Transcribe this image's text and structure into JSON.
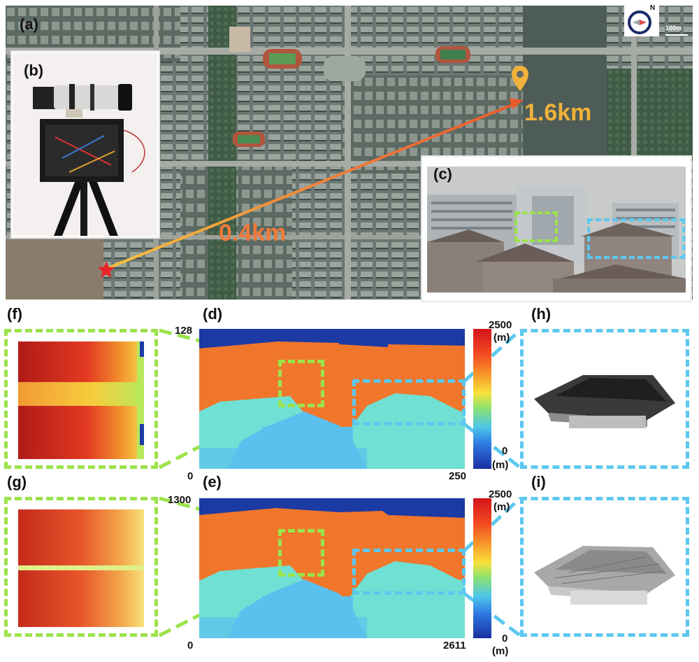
{
  "panels": {
    "a": "(a)",
    "b": "(b)",
    "c": "(c)",
    "d": "(d)",
    "e": "(e)",
    "f": "(f)",
    "g": "(g)",
    "h": "(h)",
    "i": "(i)"
  },
  "map": {
    "compass_letter": "N",
    "scale_bar": "100m",
    "distance_near": "0.4km",
    "distance_far": "1.6km",
    "near_color": "#f07a3a",
    "far_color": "#f0b23a"
  },
  "depth_d": {
    "y_top": "128",
    "y_bottom": "0",
    "x_right": "250",
    "cbar_max": "2500",
    "cbar_max_unit": "(m)",
    "cbar_min": "0",
    "cbar_min_unit": "(m)"
  },
  "depth_e": {
    "y_top": "1300",
    "y_bottom": "0",
    "x_right": "2611",
    "cbar_max": "2500",
    "cbar_max_unit": "(m)",
    "cbar_min": "0",
    "cbar_min_unit": "(m)"
  },
  "colors": {
    "green_dash": "#9be34a",
    "blue_dash": "#5cc8ef",
    "sky_blue": "#1c3aa3",
    "building_orange": "#f0762c",
    "roof_cyan": "#6fe0d3",
    "house_lightblue": "#5cc0ee"
  }
}
